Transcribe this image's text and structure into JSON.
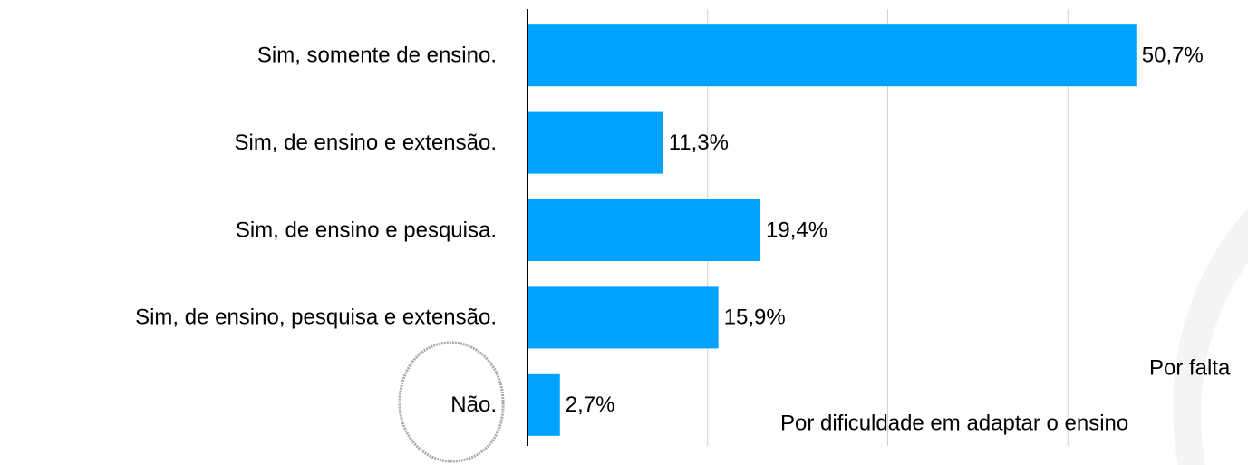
{
  "chart_data": {
    "type": "barh",
    "categories": [
      "Sim, somente de ensino.",
      "Sim, de ensino e extensão.",
      "Sim, de ensino e pesquisa.",
      "Sim, de ensino, pesquisa e extensão.",
      "Não."
    ],
    "values": [
      50.7,
      11.3,
      19.4,
      15.9,
      2.7
    ],
    "value_labels": [
      "50,7%",
      "11,3%",
      "19,4%",
      "15,9%",
      "2,7%"
    ],
    "color": "#00a2ff",
    "xlim": [
      0,
      60
    ],
    "xticks": [
      0,
      15,
      30,
      45
    ],
    "grid": true,
    "annotations": [
      "Por falta",
      "Por dificuldade em adaptar o ensino"
    ]
  }
}
